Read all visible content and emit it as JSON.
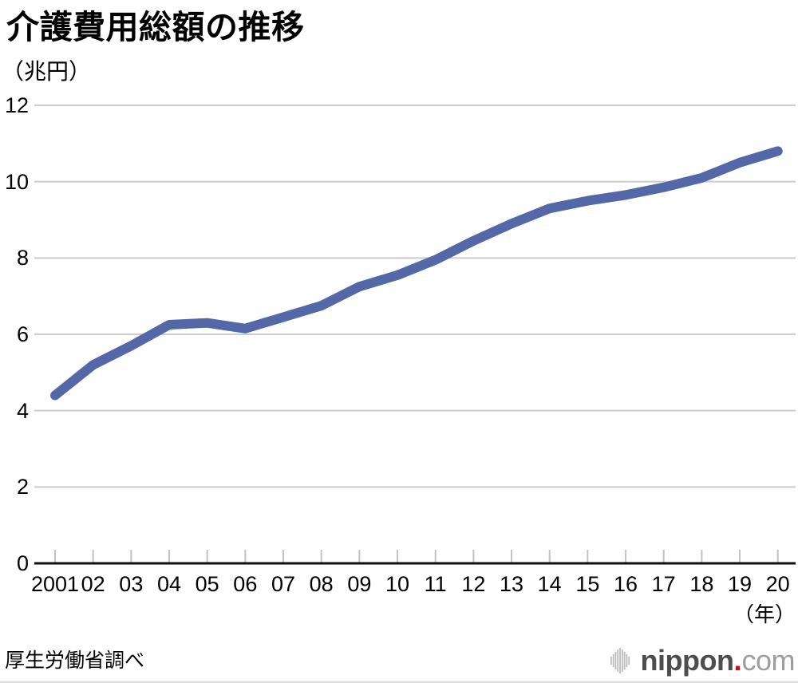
{
  "title": "介護費用総額の推移",
  "unit_label": "（兆円）",
  "x_axis_suffix": "（年）",
  "source": "厚生労働省調べ",
  "logo": {
    "icon": "soundwave-bars-icon",
    "brand_bold": "nippon",
    "dot": ".",
    "brand_light": "com"
  },
  "colors": {
    "line": "#5467a6",
    "grid": "#cccccc",
    "axis": "#111111",
    "tick": "#c2c2c2",
    "text": "#000000",
    "logo_dark": "#4d4d4d",
    "logo_light": "#9e9e9e",
    "logo_red": "#e60012",
    "logo_bars": "#b9b9b9"
  },
  "chart_data": {
    "type": "line",
    "title": "介護費用総額の推移",
    "ylabel": "（兆円）",
    "xlabel": "（年）",
    "x": [
      2001,
      2002,
      2003,
      2004,
      2005,
      2006,
      2007,
      2008,
      2009,
      2010,
      2011,
      2012,
      2013,
      2014,
      2015,
      2016,
      2017,
      2018,
      2019,
      2020
    ],
    "x_tick_labels": [
      "2001",
      "02",
      "03",
      "04",
      "05",
      "06",
      "07",
      "08",
      "09",
      "10",
      "11",
      "12",
      "13",
      "14",
      "15",
      "16",
      "17",
      "18",
      "19",
      "20"
    ],
    "values": [
      4.4,
      5.2,
      5.7,
      6.25,
      6.3,
      6.15,
      6.45,
      6.75,
      7.25,
      7.55,
      7.95,
      8.45,
      8.9,
      9.3,
      9.5,
      9.65,
      9.85,
      10.1,
      10.5,
      10.8
    ],
    "ylim": [
      0,
      12
    ],
    "ytick_step": 2,
    "grid": "horizontal",
    "legend": "none"
  }
}
